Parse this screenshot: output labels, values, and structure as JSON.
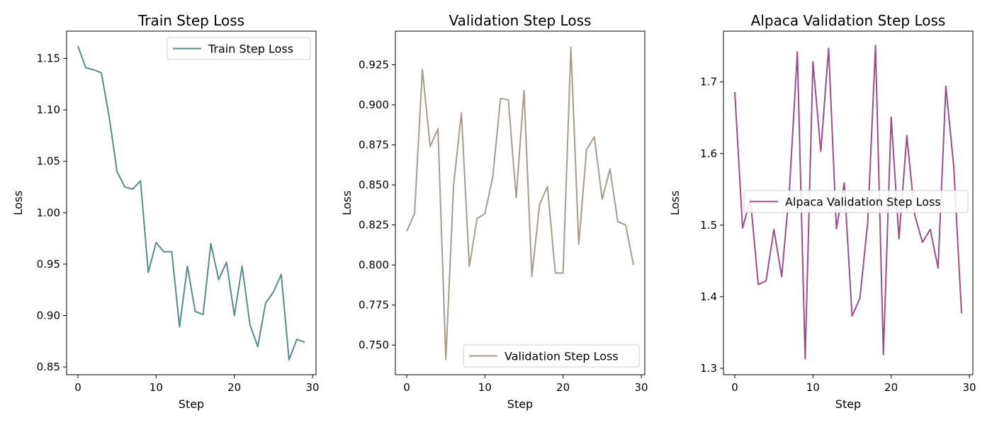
{
  "chart_data": [
    {
      "type": "line",
      "title": "Train Step Loss",
      "xlabel": "Step",
      "ylabel": "Loss",
      "xlim": [
        -1.45,
        30.45
      ],
      "ylim": [
        0.8425,
        1.1765
      ],
      "xticks": [
        0,
        10,
        20,
        30
      ],
      "yticks": [
        0.85,
        0.9,
        0.95,
        1.0,
        1.05,
        1.1,
        1.15
      ],
      "ytick_labels": [
        "0.85",
        "0.90",
        "0.95",
        "1.00",
        "1.05",
        "1.10",
        "1.15"
      ],
      "legend_position": "top-right",
      "grid": false,
      "series": [
        {
          "name": "Train Step Loss",
          "color": "#588b8b",
          "x": [
            0,
            1,
            2,
            3,
            4,
            5,
            6,
            7,
            8,
            9,
            10,
            11,
            12,
            13,
            14,
            15,
            16,
            17,
            18,
            19,
            20,
            21,
            22,
            23,
            24,
            25,
            26,
            27,
            28,
            29
          ],
          "y": [
            1.162,
            1.141,
            1.139,
            1.136,
            1.093,
            1.04,
            1.025,
            1.023,
            1.031,
            0.942,
            0.971,
            0.962,
            0.962,
            0.889,
            0.948,
            0.904,
            0.901,
            0.97,
            0.935,
            0.952,
            0.9,
            0.948,
            0.891,
            0.87,
            0.912,
            0.923,
            0.94,
            0.857,
            0.877,
            0.874
          ]
        }
      ]
    },
    {
      "type": "line",
      "title": "Validation Step Loss",
      "xlabel": "Step",
      "ylabel": "Loss",
      "xlim": [
        -1.45,
        30.45
      ],
      "ylim": [
        0.7315,
        0.946
      ],
      "xticks": [
        0,
        10,
        20,
        30
      ],
      "yticks": [
        0.75,
        0.775,
        0.8,
        0.825,
        0.85,
        0.875,
        0.9,
        0.925
      ],
      "ytick_labels": [
        "0.750",
        "0.775",
        "0.800",
        "0.825",
        "0.850",
        "0.875",
        "0.900",
        "0.925"
      ],
      "legend_position": "bottom-right",
      "grid": false,
      "series": [
        {
          "name": "Validation Step Loss",
          "color": "#a89b8c",
          "x": [
            0,
            1,
            2,
            3,
            4,
            5,
            6,
            7,
            8,
            9,
            10,
            11,
            12,
            13,
            14,
            15,
            16,
            17,
            18,
            19,
            20,
            21,
            22,
            23,
            24,
            25,
            26,
            27,
            28,
            29
          ],
          "y": [
            0.821,
            0.832,
            0.922,
            0.874,
            0.885,
            0.741,
            0.85,
            0.895,
            0.799,
            0.829,
            0.832,
            0.855,
            0.904,
            0.903,
            0.842,
            0.909,
            0.793,
            0.838,
            0.849,
            0.795,
            0.795,
            0.936,
            0.813,
            0.872,
            0.88,
            0.841,
            0.86,
            0.827,
            0.825,
            0.8
          ]
        }
      ]
    },
    {
      "type": "line",
      "title": "Alpaca Validation Step Loss",
      "xlabel": "Step",
      "ylabel": "Loss",
      "xlim": [
        -1.45,
        30.45
      ],
      "ylim": [
        1.291,
        1.771
      ],
      "xticks": [
        0,
        10,
        20,
        30
      ],
      "yticks": [
        1.3,
        1.4,
        1.5,
        1.6,
        1.7
      ],
      "ytick_labels": [
        "1.3",
        "1.4",
        "1.5",
        "1.6",
        "1.7"
      ],
      "legend_position": "center-right",
      "grid": false,
      "series": [
        {
          "name": "Alpaca Validation Step Loss",
          "color": "#9b4f8a",
          "x": [
            0,
            1,
            2,
            3,
            4,
            5,
            6,
            7,
            8,
            9,
            10,
            11,
            12,
            13,
            14,
            15,
            16,
            17,
            18,
            19,
            20,
            21,
            22,
            23,
            24,
            25,
            26,
            27,
            28,
            29
          ],
          "y": [
            1.686,
            1.496,
            1.536,
            1.417,
            1.422,
            1.494,
            1.428,
            1.551,
            1.742,
            1.313,
            1.728,
            1.603,
            1.747,
            1.495,
            1.559,
            1.373,
            1.398,
            1.504,
            1.751,
            1.319,
            1.651,
            1.481,
            1.625,
            1.515,
            1.476,
            1.494,
            1.44,
            1.694,
            1.582,
            1.377
          ]
        }
      ]
    }
  ]
}
